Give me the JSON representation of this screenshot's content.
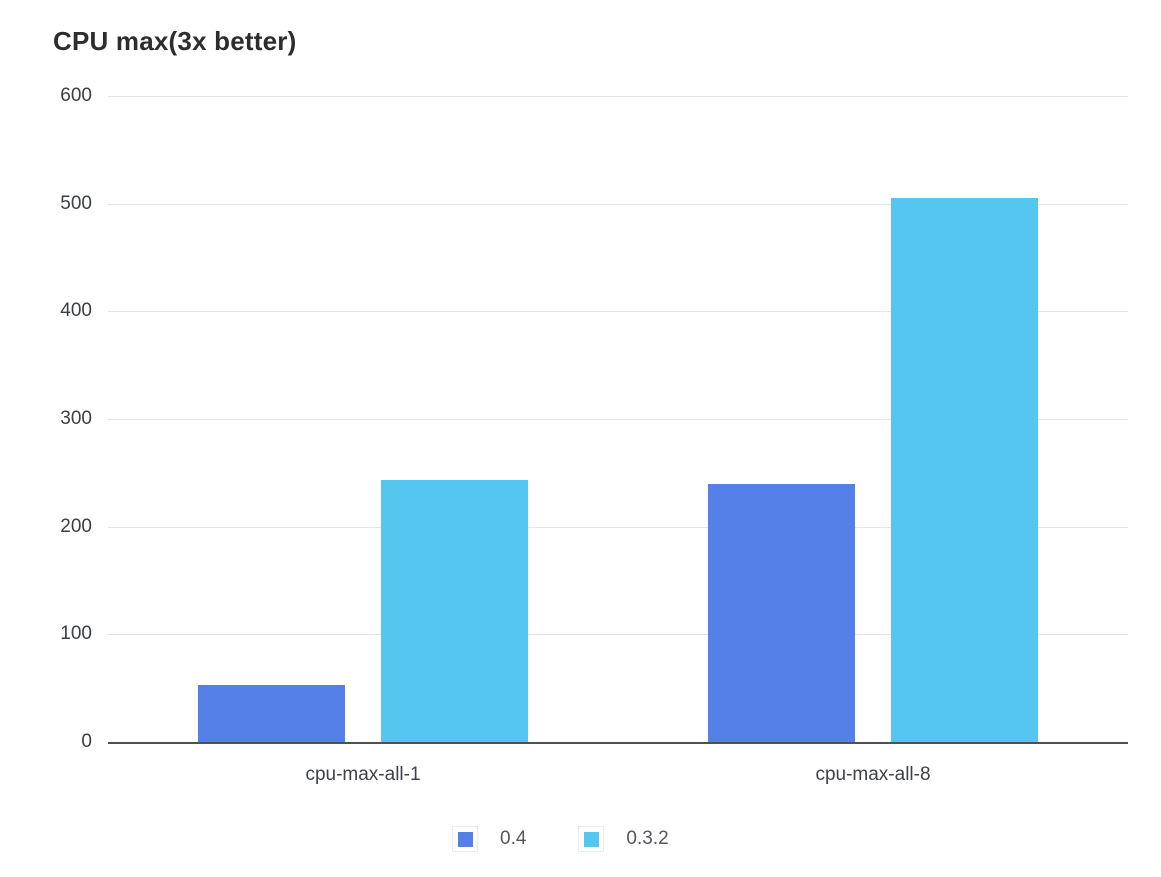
{
  "title": "CPU max(3x better)",
  "chart_data": {
    "type": "bar",
    "title": "CPU max(3x better)",
    "categories": [
      "cpu-max-all-1",
      "cpu-max-all-8"
    ],
    "series": [
      {
        "name": "0.4",
        "color": "#5580e8",
        "values": [
          53,
          240
        ]
      },
      {
        "name": "0.3.2",
        "color": "#55c6f0",
        "values": [
          243,
          505
        ]
      }
    ],
    "ylim": [
      0,
      600
    ],
    "yticks": [
      0,
      100,
      200,
      300,
      400,
      500,
      600
    ],
    "xlabel": "",
    "ylabel": "",
    "grid": true,
    "legend_position": "bottom",
    "legend_entries": [
      "0.4",
      "0.3.2"
    ]
  },
  "colors": {
    "series_blue": "#5580e8",
    "series_cyan": "#55c6f0",
    "gridline": "#e4e5e8",
    "axis_line": "#4d5156",
    "title_text": "#2d2d2d",
    "tick_text": "#3b4045",
    "legend_text": "#54585c",
    "background": "#ffffff"
  }
}
